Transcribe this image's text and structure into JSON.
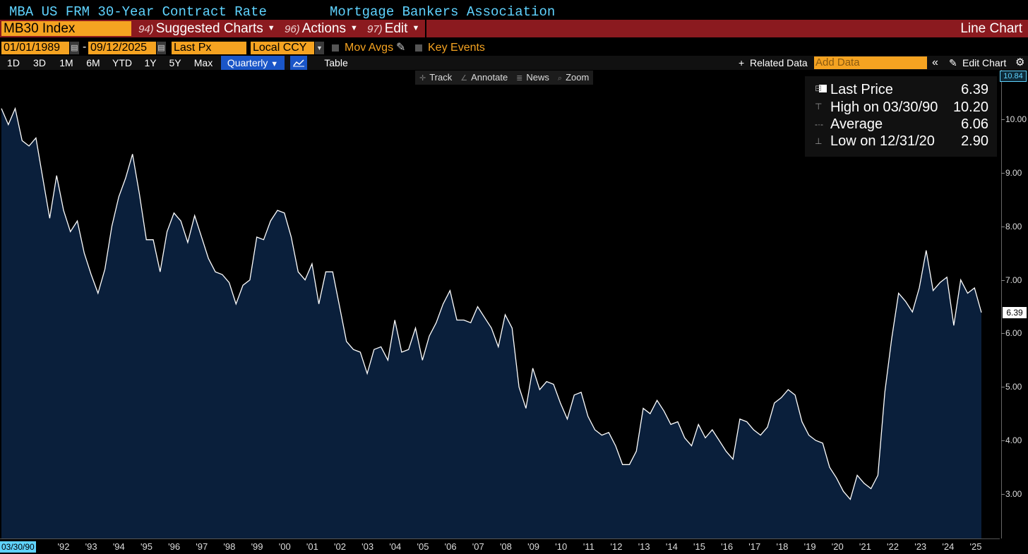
{
  "header": {
    "security_name": "MBA US FRM 30-Year Contract Rate",
    "source": "Mortgage Bankers Association"
  },
  "toolbar": {
    "ticker": "MB30 Index",
    "suggested_num": "94)",
    "suggested_label": "Suggested Charts",
    "actions_num": "96)",
    "actions_label": "Actions",
    "edit_num": "97)",
    "edit_label": "Edit",
    "chart_type": "Line Chart"
  },
  "range": {
    "start_date": "01/01/1989",
    "end_date": "09/12/2025",
    "field": "Last Px",
    "currency": "Local CCY",
    "mov_avgs": "Mov Avgs",
    "key_events": "Key Events"
  },
  "periods": [
    "1D",
    "3D",
    "1M",
    "6M",
    "YTD",
    "1Y",
    "5Y",
    "Max"
  ],
  "frequency": "Quarterly",
  "table_label": "Table",
  "related_data": "Related Data",
  "add_data_placeholder": "Add Data",
  "edit_chart": "Edit Chart",
  "chart_tools": [
    "Track",
    "Annotate",
    "News",
    "Zoom"
  ],
  "legend": {
    "last_price_label": "Last Price",
    "last_price_value": "6.39",
    "high_label": "High on 03/30/90",
    "high_value": "10.20",
    "average_label": "Average",
    "average_value": "6.06",
    "low_label": "Low on 12/31/20",
    "low_value": "2.90"
  },
  "axis_tags": {
    "max": "10.84",
    "last": "6.39",
    "start_date": "03/30/90"
  },
  "colors": {
    "accent_orange": "#f5a321",
    "toolbar_red": "#8b1a1f",
    "title_cyan": "#5fd3ff",
    "area_fill": "#0a1f3b",
    "line": "#ffffff",
    "active_blue": "#1a56c8"
  },
  "chart_data": {
    "type": "area",
    "title": "MBA US FRM 30-Year Contract Rate",
    "frequency": "Quarterly",
    "ylim": [
      2.3,
      10.84
    ],
    "y_ticks": [
      "3.00",
      "4.00",
      "5.00",
      "6.00",
      "7.00",
      "8.00",
      "9.00",
      "10.00"
    ],
    "x_tick_labels": [
      "'92",
      "'93",
      "'94",
      "'95",
      "'96",
      "'97",
      "'98",
      "'99",
      "'00",
      "'01",
      "'02",
      "'03",
      "'04",
      "'05",
      "'06",
      "'07",
      "'08",
      "'09",
      "'10",
      "'11",
      "'12",
      "'13",
      "'14",
      "'15",
      "'16",
      "'17",
      "'18",
      "'19",
      "'20",
      "'21",
      "'22",
      "'23",
      "'24",
      "'25"
    ],
    "x_start": 1990.0,
    "x_end": 2025.5,
    "values": [
      10.2,
      9.9,
      10.2,
      9.6,
      9.5,
      9.65,
      8.9,
      8.15,
      8.95,
      8.3,
      7.9,
      8.1,
      7.5,
      7.1,
      6.75,
      7.2,
      8.0,
      8.55,
      8.9,
      9.35,
      8.6,
      7.75,
      7.75,
      7.15,
      7.9,
      8.25,
      8.1,
      7.7,
      8.2,
      7.8,
      7.4,
      7.15,
      7.1,
      6.95,
      6.55,
      6.9,
      7.0,
      7.8,
      7.75,
      8.1,
      8.3,
      8.25,
      7.8,
      7.15,
      7.0,
      7.3,
      6.55,
      7.15,
      7.15,
      6.5,
      5.85,
      5.7,
      5.65,
      5.25,
      5.7,
      5.75,
      5.5,
      6.25,
      5.65,
      5.7,
      6.1,
      5.5,
      5.95,
      6.2,
      6.55,
      6.8,
      6.25,
      6.25,
      6.2,
      6.5,
      6.3,
      6.1,
      5.75,
      6.35,
      6.1,
      5.0,
      4.6,
      5.35,
      4.95,
      5.1,
      5.05,
      4.7,
      4.4,
      4.85,
      4.9,
      4.45,
      4.2,
      4.1,
      4.15,
      3.9,
      3.55,
      3.55,
      3.8,
      4.6,
      4.5,
      4.75,
      4.55,
      4.3,
      4.35,
      4.05,
      3.9,
      4.3,
      4.05,
      4.2,
      4.0,
      3.8,
      3.65,
      4.4,
      4.35,
      4.2,
      4.1,
      4.25,
      4.7,
      4.8,
      4.95,
      4.85,
      4.35,
      4.1,
      4.0,
      3.95,
      3.5,
      3.3,
      3.05,
      2.9,
      3.35,
      3.2,
      3.1,
      3.35,
      4.9,
      5.9,
      6.75,
      6.6,
      6.4,
      6.85,
      7.55,
      6.8,
      6.95,
      7.05,
      6.15,
      7.0,
      6.75,
      6.85,
      6.39
    ],
    "summary": {
      "last": 6.39,
      "high": 10.2,
      "average": 6.06,
      "low": 2.9
    }
  }
}
